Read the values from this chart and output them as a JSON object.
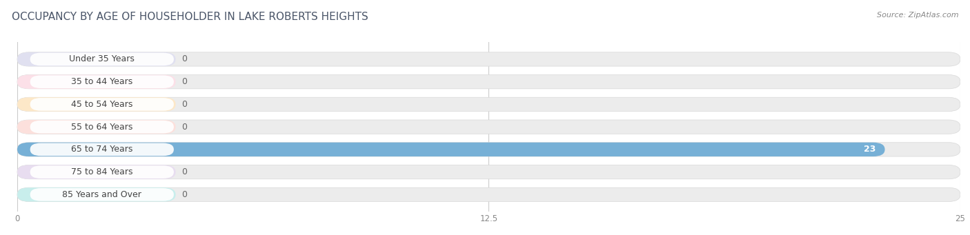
{
  "title": "OCCUPANCY BY AGE OF HOUSEHOLDER IN LAKE ROBERTS HEIGHTS",
  "source": "Source: ZipAtlas.com",
  "categories": [
    "Under 35 Years",
    "35 to 44 Years",
    "45 to 54 Years",
    "55 to 64 Years",
    "65 to 74 Years",
    "75 to 84 Years",
    "85 Years and Over"
  ],
  "values": [
    0,
    0,
    0,
    0,
    23,
    0,
    0
  ],
  "bar_colors": [
    "#b0b0e0",
    "#f0a0b8",
    "#f5c88a",
    "#f0a8a0",
    "#6aaad4",
    "#c0a8d8",
    "#80d4cc"
  ],
  "bar_bg_colors": [
    "#e0e0f0",
    "#fce0e8",
    "#fde8c8",
    "#fce0dc",
    "#c8dff0",
    "#e8ddf0",
    "#c8eeec"
  ],
  "outer_bg_color": "#ececec",
  "bar_background_color": "#f0f0f0",
  "xlim": [
    0,
    25
  ],
  "xticks": [
    0,
    12.5,
    25
  ],
  "title_fontsize": 11,
  "source_fontsize": 8,
  "label_fontsize": 9,
  "value_fontsize": 9,
  "background_color": "#ffffff",
  "bar_height": 0.62,
  "title_color": "#4a5568",
  "source_color": "#888888",
  "label_color": "#444444",
  "value_color_dark": "#666666",
  "value_color_light": "#ffffff"
}
